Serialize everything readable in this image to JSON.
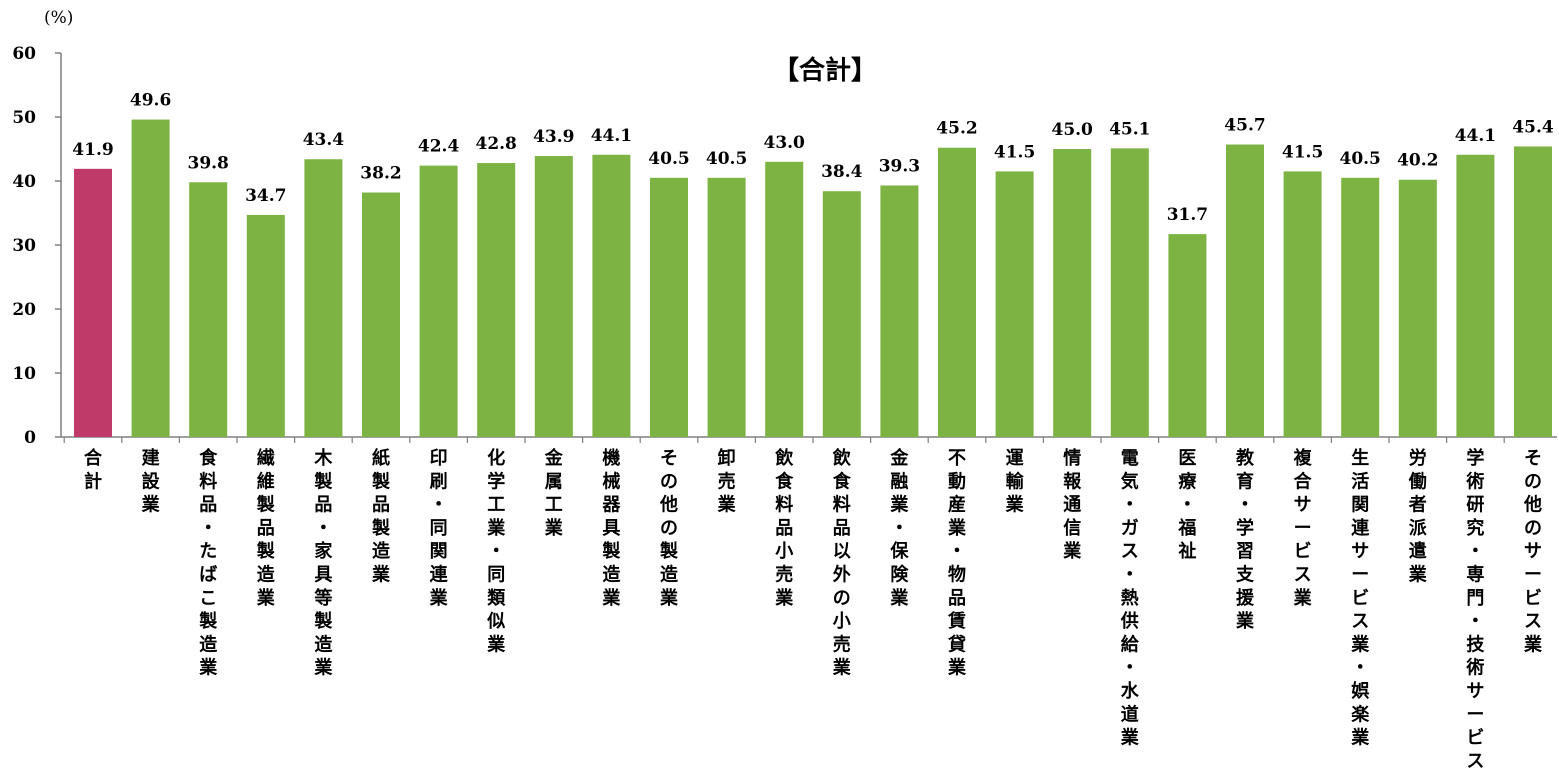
{
  "chart_data": {
    "type": "bar",
    "title": "【合計】",
    "ylabel": "(%)",
    "ylim": [
      0,
      60
    ],
    "yticks": [
      0,
      10,
      20,
      30,
      40,
      50,
      60
    ],
    "grid": false,
    "categories": [
      "合計",
      "建設業",
      "食料品・たばこ製造業",
      "繊維製品製造業",
      "木製品・家具等製造業",
      "紙製品製造業",
      "印刷・同関連業",
      "化学工業・同類似業",
      "金属工業",
      "機械器具製造業",
      "その他の製造業",
      "卸売業",
      "飲食料品小売業",
      "飲食料品以外の小売業",
      "金融業・保険業",
      "不動産業・物品賃貸業",
      "運輸業",
      "情報通信業",
      "電気・ガス・熱供給・水道業",
      "医療・福祉",
      "教育・学習支援業",
      "複合サービス業",
      "生活関連サービス業・娯楽業",
      "労働者派遣業",
      "学術研究・専門・技術サービス業",
      "その他のサービス業"
    ],
    "values": [
      41.9,
      49.6,
      39.8,
      34.7,
      43.4,
      38.2,
      42.4,
      42.8,
      43.9,
      44.1,
      40.5,
      40.5,
      43.0,
      38.4,
      39.3,
      45.2,
      41.5,
      45.0,
      45.1,
      31.7,
      45.7,
      41.5,
      40.5,
      40.2,
      44.1,
      45.4
    ],
    "data_labels": [
      "41.9",
      "49.6",
      "39.8",
      "34.7",
      "43.4",
      "38.2",
      "42.4",
      "42.8",
      "43.9",
      "44.1",
      "40.5",
      "40.5",
      "43.0",
      "38.4",
      "39.3",
      "45.2",
      "41.5",
      "45.0",
      "45.1",
      "31.7",
      "45.7",
      "41.5",
      "40.5",
      "40.2",
      "44.1",
      "45.4"
    ],
    "colors": {
      "highlight": "#bf3a69",
      "default": "#7cb342",
      "axis": "#808080"
    },
    "highlight_index": 0
  }
}
